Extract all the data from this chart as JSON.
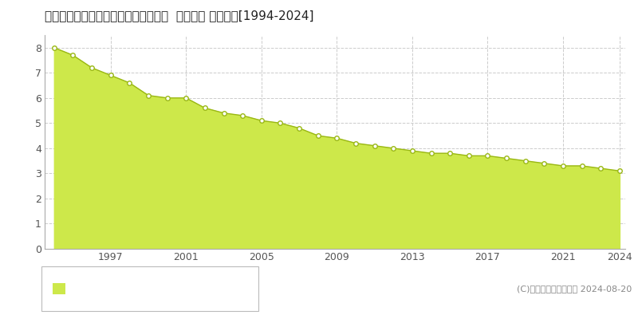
{
  "title": "北海道中川郡本別町北５丁目８番３外  地価公示 地価推移[1994-2024]",
  "years": [
    1994,
    1995,
    1996,
    1997,
    1998,
    1999,
    2000,
    2001,
    2002,
    2003,
    2004,
    2005,
    2006,
    2007,
    2008,
    2009,
    2010,
    2011,
    2012,
    2013,
    2014,
    2015,
    2016,
    2017,
    2018,
    2019,
    2020,
    2021,
    2022,
    2023,
    2024
  ],
  "values": [
    8.0,
    7.7,
    7.2,
    6.9,
    6.6,
    6.1,
    6.0,
    6.0,
    5.6,
    5.4,
    5.3,
    5.1,
    5.0,
    4.8,
    4.5,
    4.4,
    4.2,
    4.1,
    4.0,
    3.9,
    3.8,
    3.8,
    3.7,
    3.7,
    3.6,
    3.5,
    3.4,
    3.3,
    3.3,
    3.2,
    3.1
  ],
  "fill_color": "#cde84a",
  "line_color": "#9ab814",
  "marker_face_color": "#ffffff",
  "marker_edge_color": "#9ab814",
  "grid_color": "#cccccc",
  "background_color": "#ffffff",
  "plot_bg_color": "#ffffff",
  "ylim": [
    0,
    8.5
  ],
  "yticks": [
    0,
    1,
    2,
    3,
    4,
    5,
    6,
    7,
    8
  ],
  "xticks": [
    1997,
    2001,
    2005,
    2009,
    2013,
    2017,
    2021,
    2024
  ],
  "legend_square_color": "#cde84a",
  "copyright_text": "(C)土地価格ドットコム 2024-08-20",
  "title_fontsize": 11,
  "tick_fontsize": 9,
  "legend_fontsize": 9,
  "copyright_fontsize": 8
}
